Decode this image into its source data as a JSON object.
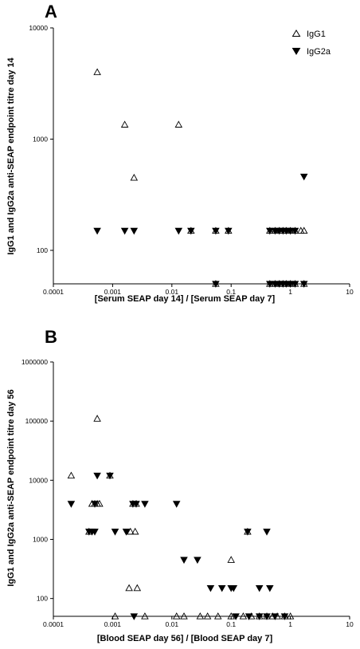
{
  "chart_data": [
    {
      "type": "scatter",
      "panel": "A",
      "xlabel": "[Serum SEAP day 14] / [Serum SEAP day 7]",
      "ylabel": "IgG1 and IgG2a anti-SEAP endpoint titre day 14",
      "xscale": "log",
      "yscale": "log",
      "xlim": [
        0.0001,
        10
      ],
      "ylim": [
        50,
        10000
      ],
      "xticks": [
        "0.0001",
        "0.001",
        "0.01",
        "0.1",
        "1",
        "10"
      ],
      "yticks": [
        "100",
        "1000",
        "10000"
      ],
      "legend": {
        "position": "top-right",
        "entries": [
          "IgG1",
          "IgG2a"
        ]
      },
      "series": [
        {
          "name": "IgG1",
          "marker": "open-triangle-up",
          "points": [
            [
              0.00055,
              4000
            ],
            [
              0.0016,
              1350
            ],
            [
              0.0023,
              450
            ],
            [
              0.013,
              1350
            ],
            [
              0.021,
              150
            ],
            [
              0.055,
              150
            ],
            [
              0.09,
              150
            ],
            [
              0.45,
              150
            ],
            [
              0.55,
              150
            ],
            [
              0.65,
              150
            ],
            [
              0.75,
              150
            ],
            [
              0.85,
              150
            ],
            [
              1.0,
              150
            ],
            [
              1.2,
              150
            ],
            [
              1.5,
              150
            ],
            [
              1.7,
              150
            ],
            [
              0.055,
              50
            ],
            [
              0.45,
              50
            ],
            [
              0.55,
              50
            ],
            [
              0.65,
              50
            ],
            [
              0.75,
              50
            ],
            [
              0.85,
              50
            ],
            [
              1.0,
              50
            ],
            [
              1.2,
              50
            ],
            [
              1.7,
              50
            ]
          ]
        },
        {
          "name": "IgG2a",
          "marker": "filled-triangle-down",
          "points": [
            [
              0.00055,
              150
            ],
            [
              0.0016,
              150
            ],
            [
              0.0023,
              150
            ],
            [
              0.013,
              150
            ],
            [
              0.021,
              150
            ],
            [
              0.055,
              150
            ],
            [
              0.09,
              150
            ],
            [
              0.45,
              150
            ],
            [
              0.55,
              150
            ],
            [
              0.65,
              150
            ],
            [
              0.75,
              150
            ],
            [
              0.85,
              150
            ],
            [
              1.0,
              150
            ],
            [
              1.2,
              150
            ],
            [
              1.7,
              460
            ],
            [
              0.055,
              50
            ],
            [
              0.45,
              50
            ],
            [
              0.55,
              50
            ],
            [
              0.65,
              50
            ],
            [
              0.75,
              50
            ],
            [
              0.85,
              50
            ],
            [
              1.0,
              50
            ],
            [
              1.2,
              50
            ],
            [
              1.7,
              50
            ]
          ]
        }
      ]
    },
    {
      "type": "scatter",
      "panel": "B",
      "xlabel": "[Blood SEAP day 56] / [Blood SEAP day 7]",
      "ylabel": "IgG1 and IgG2a anti-SEAP endpoint titre day 56",
      "xscale": "log",
      "yscale": "log",
      "xlim": [
        0.0001,
        10
      ],
      "ylim": [
        50,
        1000000
      ],
      "xticks": [
        "0.0001",
        "0.001",
        "0.01",
        "0.1",
        "1",
        "10"
      ],
      "yticks": [
        "100",
        "1000",
        "10000",
        "100000",
        "1000000"
      ],
      "series": [
        {
          "name": "IgG1",
          "marker": "open-triangle-up",
          "points": [
            [
              0.0002,
              12000
            ],
            [
              0.00055,
              110000
            ],
            [
              0.0009,
              12000
            ],
            [
              0.00045,
              4000
            ],
            [
              0.0005,
              4000
            ],
            [
              0.00055,
              4000
            ],
            [
              0.0006,
              4000
            ],
            [
              0.0022,
              4000
            ],
            [
              0.0025,
              4000
            ],
            [
              0.0004,
              1350
            ],
            [
              0.002,
              1350
            ],
            [
              0.0024,
              1350
            ],
            [
              0.19,
              1350
            ],
            [
              0.1,
              450
            ],
            [
              0.0019,
              150
            ],
            [
              0.0026,
              150
            ],
            [
              0.0011,
              50
            ],
            [
              0.0035,
              50
            ],
            [
              0.012,
              50
            ],
            [
              0.016,
              50
            ],
            [
              0.03,
              50
            ],
            [
              0.04,
              50
            ],
            [
              0.06,
              50
            ],
            [
              0.1,
              50
            ],
            [
              0.16,
              50
            ],
            [
              0.22,
              50
            ],
            [
              0.3,
              50
            ],
            [
              0.4,
              50
            ],
            [
              0.5,
              50
            ],
            [
              0.6,
              50
            ],
            [
              0.8,
              50
            ],
            [
              1.0,
              50
            ]
          ]
        },
        {
          "name": "IgG2a",
          "marker": "filled-triangle-down",
          "points": [
            [
              0.0002,
              4000
            ],
            [
              0.00055,
              12000
            ],
            [
              0.0009,
              12000
            ],
            [
              0.0005,
              4000
            ],
            [
              0.0022,
              4000
            ],
            [
              0.0025,
              4000
            ],
            [
              0.0035,
              4000
            ],
            [
              0.012,
              4000
            ],
            [
              0.0004,
              1350
            ],
            [
              0.00045,
              1350
            ],
            [
              0.0005,
              1350
            ],
            [
              0.0011,
              1350
            ],
            [
              0.0017,
              1350
            ],
            [
              0.19,
              1350
            ],
            [
              0.4,
              1350
            ],
            [
              0.016,
              450
            ],
            [
              0.027,
              450
            ],
            [
              0.045,
              150
            ],
            [
              0.07,
              150
            ],
            [
              0.1,
              150
            ],
            [
              0.11,
              150
            ],
            [
              0.3,
              150
            ],
            [
              0.45,
              150
            ],
            [
              0.0023,
              50
            ],
            [
              0.12,
              50
            ],
            [
              0.2,
              50
            ],
            [
              0.3,
              50
            ],
            [
              0.4,
              50
            ],
            [
              0.55,
              50
            ],
            [
              0.8,
              50
            ]
          ]
        }
      ]
    }
  ]
}
